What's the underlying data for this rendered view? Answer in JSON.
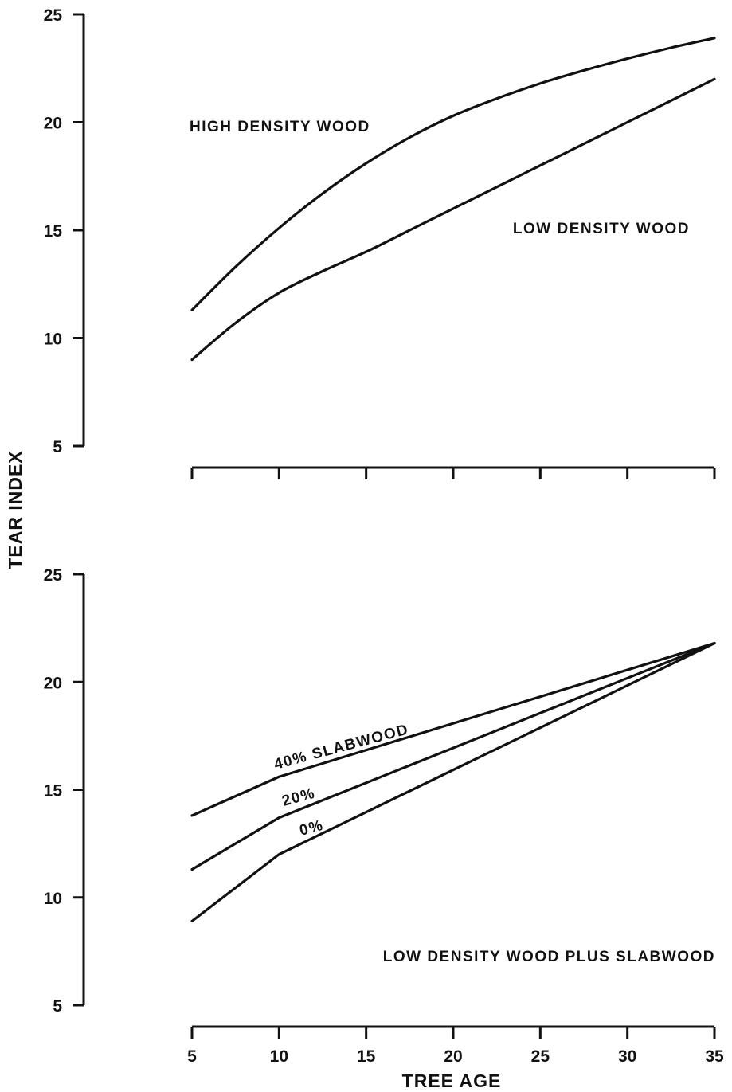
{
  "chart_data": [
    {
      "type": "line",
      "title": "",
      "xlabel": "",
      "ylabel": "TEAR INDEX",
      "ylim": [
        5,
        25
      ],
      "xlim": [
        5,
        35
      ],
      "yticks": [
        5,
        10,
        15,
        20,
        25
      ],
      "xticks": [
        5,
        10,
        15,
        20,
        25,
        30,
        35
      ],
      "x_tick_labels_shown": false,
      "grid": false,
      "series": [
        {
          "name": "HIGH DENSITY WOOD",
          "x": [
            5,
            7.5,
            10,
            12.5,
            15,
            17.5,
            20,
            22.5,
            25,
            27.5,
            30,
            32.5,
            35
          ],
          "y": [
            11.3,
            13.3,
            15.1,
            16.7,
            18.1,
            19.3,
            20.3,
            21.1,
            21.8,
            22.4,
            22.95,
            23.45,
            23.9
          ]
        },
        {
          "name": "LOW DENSITY WOOD",
          "x": [
            5,
            7.5,
            10,
            12.5,
            15,
            17.5,
            20,
            22.5,
            25,
            27.5,
            30,
            32.5,
            35
          ],
          "y": [
            9.0,
            10.7,
            12.1,
            13.1,
            14.0,
            15.0,
            16.0,
            17.0,
            18.0,
            19.0,
            20.0,
            21.0,
            22.0
          ]
        }
      ]
    },
    {
      "type": "line",
      "title": "LOW DENSITY WOOD PLUS SLABWOOD",
      "xlabel": "TREE AGE",
      "ylabel": "TEAR INDEX",
      "ylim": [
        5,
        25
      ],
      "xlim": [
        5,
        35
      ],
      "yticks": [
        5,
        10,
        15,
        20,
        25
      ],
      "xticks": [
        5,
        10,
        15,
        20,
        25,
        30,
        35
      ],
      "x_tick_labels_shown": true,
      "grid": false,
      "series": [
        {
          "name": "40% SLABWOOD",
          "x": [
            5,
            10,
            35
          ],
          "y": [
            13.8,
            15.6,
            21.8
          ]
        },
        {
          "name": "20%",
          "x": [
            5,
            10,
            35
          ],
          "y": [
            11.3,
            13.7,
            21.8
          ]
        },
        {
          "name": "0%",
          "x": [
            5,
            10,
            35
          ],
          "y": [
            8.9,
            12.0,
            21.8
          ]
        }
      ]
    }
  ]
}
